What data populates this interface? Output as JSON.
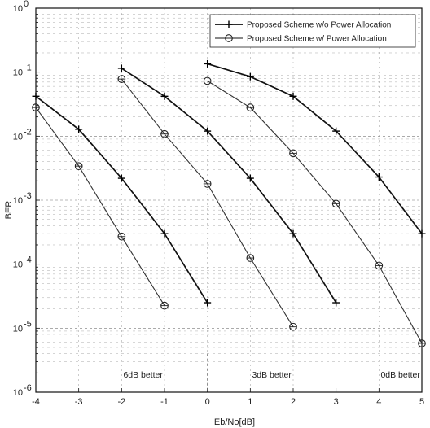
{
  "chart_data": {
    "type": "line",
    "xlabel": "Eb/No[dB]",
    "ylabel": "BER",
    "x_ticks": [
      "-4",
      "-3",
      "-2",
      "-1",
      "0",
      "1",
      "2",
      "3",
      "4",
      "5"
    ],
    "xlim": [
      -4,
      5
    ],
    "y_scale": "log",
    "y_ticks": [
      {
        "base": "10",
        "exp": "0"
      },
      {
        "base": "10",
        "exp": "-1"
      },
      {
        "base": "10",
        "exp": "-2"
      },
      {
        "base": "10",
        "exp": "-3"
      },
      {
        "base": "10",
        "exp": "-4"
      },
      {
        "base": "10",
        "exp": "-5"
      },
      {
        "base": "10",
        "exp": "-6"
      }
    ],
    "ylim": [
      1e-06,
      1
    ],
    "grid": true,
    "legend_position": "top-right",
    "series": [
      {
        "name": "Proposed Scheme w/o Power Allocation",
        "marker": "plus",
        "groups": [
          {
            "x": [
              -4,
              -3,
              -2,
              -1,
              0
            ],
            "y": [
              0.042,
              0.0128,
              0.0022,
              0.0003,
              2.5e-05
            ]
          },
          {
            "x": [
              -2,
              -1,
              0,
              1,
              2,
              3
            ],
            "y": [
              0.115,
              0.042,
              0.012,
              0.0022,
              0.0003,
              2.5e-05
            ]
          },
          {
            "x": [
              0,
              1,
              2,
              3,
              4,
              5
            ],
            "y": [
              0.135,
              0.085,
              0.042,
              0.012,
              0.0023,
              0.0003
            ]
          }
        ]
      },
      {
        "name": "Proposed Scheme w/ Power Allocation",
        "marker": "circle",
        "groups": [
          {
            "x": [
              -4,
              -3,
              -2,
              -1
            ],
            "y": [
              0.028,
              0.0034,
              0.00027,
              2.25e-05
            ]
          },
          {
            "x": [
              -2,
              -1,
              0,
              1,
              2
            ],
            "y": [
              0.078,
              0.0108,
              0.0018,
              0.000125,
              1.05e-05
            ]
          },
          {
            "x": [
              0,
              1,
              2,
              3,
              4,
              5
            ],
            "y": [
              0.073,
              0.028,
              0.0054,
              0.00088,
              9.5e-05,
              5.8e-06
            ]
          }
        ]
      }
    ],
    "annotations": [
      {
        "text": "6dB better",
        "x": -1.5
      },
      {
        "text": "3dB better",
        "x": 1.5
      },
      {
        "text": "0dB better",
        "x": 4.5
      }
    ]
  }
}
